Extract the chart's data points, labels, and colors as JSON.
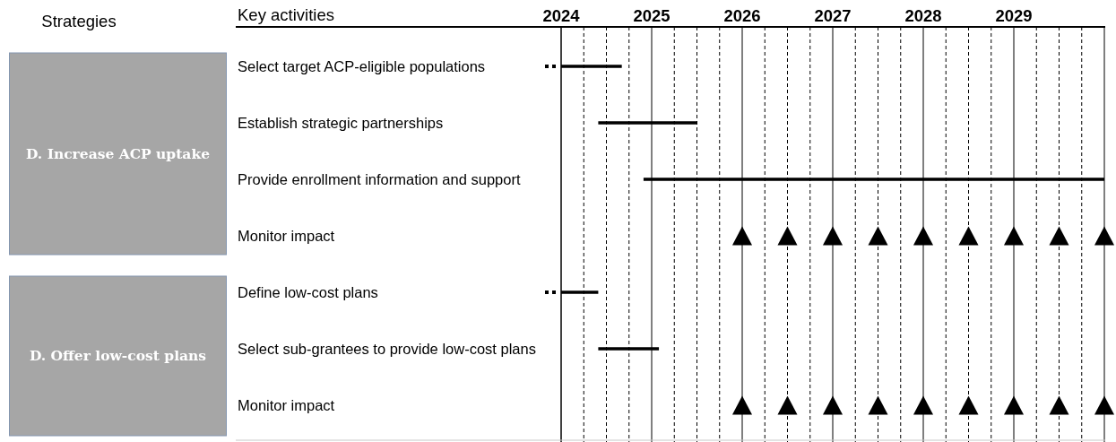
{
  "chart_data": [
    {
      "type": "other",
      "title": "Strategies",
      "annotations": [
        "D. Increase ACP uptake",
        "D. Offer low-cost plans"
      ]
    },
    {
      "type": "bar",
      "orientation": "horizontal",
      "ylabel": "Key activities",
      "categories": [
        "Select target ACP-eligible populations",
        "Establish strategic partnerships",
        "Provide enrollment information and support",
        "Monitor impact",
        "Define low-cost plans",
        "Select sub-grantees to provide low-cost plans",
        "Monitor impact"
      ],
      "series": [
        {
          "color": "#000000",
          "values": [
            0.67,
            1.09,
            5.09,
            null,
            0.41,
            0.67,
            null
          ],
          "base": [
            2024,
            2024.41,
            2024.91,
            null,
            2024,
            2024.41,
            null
          ]
        },
        {
          "type": "scatter",
          "color": "#000000",
          "values": [
            null,
            null,
            null,
            2026,
            null,
            null,
            2026
          ]
        },
        {
          "type": "scatter",
          "color": "#000000",
          "values": [
            null,
            null,
            null,
            2026.5,
            null,
            null,
            2026.5
          ]
        },
        {
          "type": "scatter",
          "color": "#000000",
          "values": [
            null,
            null,
            null,
            2027,
            null,
            null,
            2027
          ]
        },
        {
          "type": "scatter",
          "color": "#000000",
          "values": [
            null,
            null,
            null,
            2027.5,
            null,
            null,
            2027.5
          ]
        },
        {
          "type": "scatter",
          "color": "#000000",
          "values": [
            null,
            null,
            null,
            2028,
            null,
            null,
            2028
          ]
        },
        {
          "type": "scatter",
          "color": "#000000",
          "values": [
            null,
            null,
            null,
            2028.5,
            null,
            null,
            2028.5
          ]
        },
        {
          "type": "scatter",
          "color": "#000000",
          "values": [
            null,
            null,
            null,
            2029,
            null,
            null,
            2029
          ]
        },
        {
          "type": "scatter",
          "color": "#000000",
          "values": [
            null,
            null,
            null,
            2029.5,
            null,
            null,
            2029.5
          ]
        },
        {
          "type": "scatter",
          "color": "#000000",
          "values": [
            null,
            null,
            null,
            2030,
            null,
            null,
            2030
          ]
        }
      ],
      "marker": "triangle",
      "xlim": [
        2024,
        2030
      ],
      "xticks": [
        2024,
        {
          "value": 2024.25,
          "label": null
        },
        {
          "value": 2024.5,
          "label": null
        },
        {
          "value": 2024.75,
          "label": null
        },
        2025,
        {
          "value": 2025.25,
          "label": null
        },
        {
          "value": 2025.5,
          "label": null
        },
        {
          "value": 2025.75,
          "label": null
        },
        2026,
        {
          "value": 2026.25,
          "label": null
        },
        {
          "value": 2026.5,
          "label": null
        },
        {
          "value": 2026.75,
          "label": null
        },
        2027,
        {
          "value": 2027.25,
          "label": null
        },
        {
          "value": 2027.5,
          "label": null
        },
        {
          "value": 2027.75,
          "label": null
        },
        2028,
        {
          "value": 2028.25,
          "label": null
        },
        {
          "value": 2028.5,
          "label": null
        },
        {
          "value": 2028.75,
          "label": null
        },
        2029,
        {
          "value": 2029.25,
          "label": null
        },
        {
          "value": 2029.5,
          "label": null
        },
        {
          "value": 2029.75,
          "label": null
        }
      ],
      "grid": true
    }
  ]
}
